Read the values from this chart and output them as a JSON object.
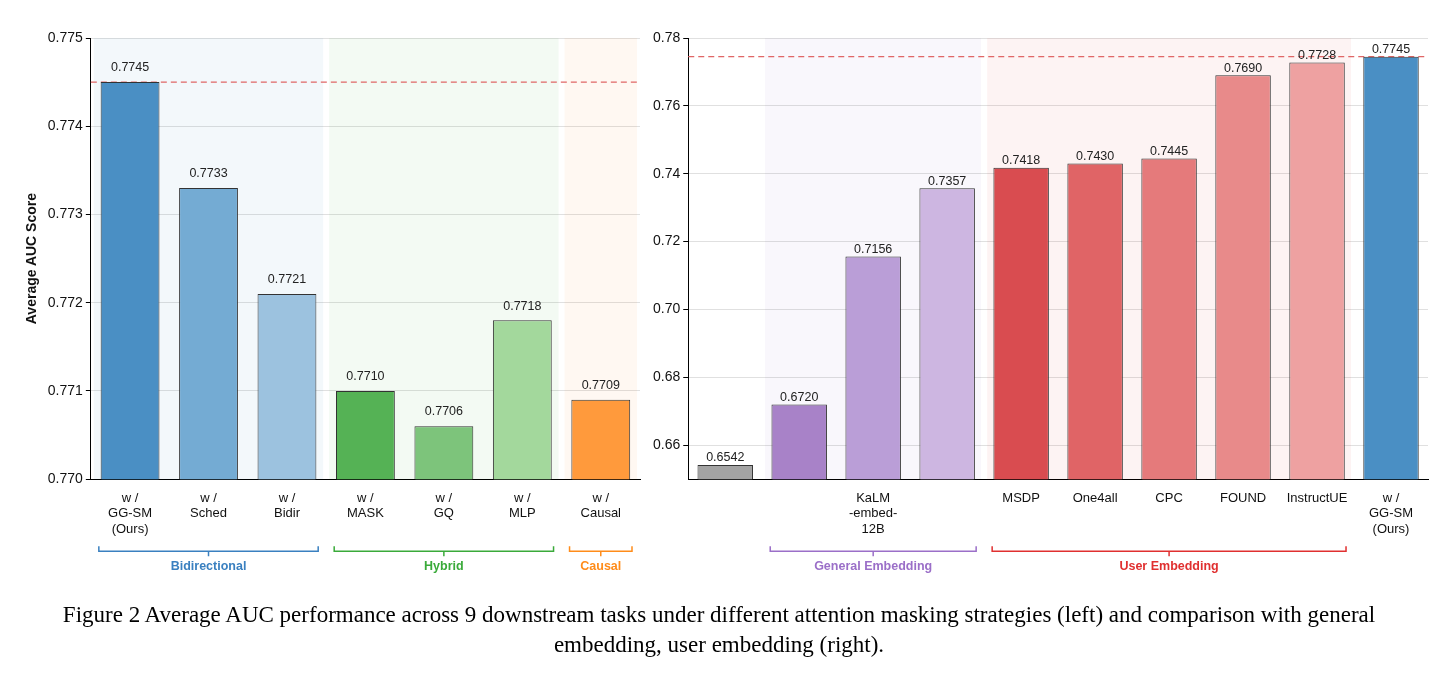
{
  "chart_data": [
    {
      "type": "bar",
      "ylabel": "Average AUC Score",
      "categories": [
        "w /\nGG-SM\n(Ours)",
        "w /\nSched",
        "w /\nBidir",
        "w /\nMASK",
        "w /\nGQ",
        "w /\nMLP",
        "w /\nCausal"
      ],
      "values": [
        0.7745,
        0.7733,
        0.7721,
        0.771,
        0.7706,
        0.7718,
        0.7709
      ],
      "value_labels": [
        "0.7745",
        "0.7733",
        "0.7721",
        "0.7710",
        "0.7706",
        "0.7718",
        "0.7709"
      ],
      "colors": [
        "#4a8fc4",
        "#74abd3",
        "#9cc2df",
        "#55b255",
        "#7dc47b",
        "#a3d89c",
        "#ff9a3c"
      ],
      "ylim": [
        0.77,
        0.775
      ],
      "yticks": [
        {
          "value": 0.77,
          "label": "0.770"
        },
        0.771,
        0.772,
        0.773,
        0.774,
        0.775
      ],
      "grid": "y",
      "legend": "bottom",
      "ref_lines": [
        {
          "axis": "y",
          "value": 0.7745,
          "color": "#e06666",
          "line_style": "dashed"
        }
      ],
      "bands": [
        {
          "axis": "x",
          "from": "w /\nGG-SM\n(Ours)",
          "to": "w /\nBidir",
          "label": "Bidirectional",
          "color": "#3a80c0"
        },
        {
          "axis": "x",
          "from": "w /\nMASK",
          "to": "w /\nMLP",
          "label": "Hybrid",
          "color": "#3aaa3a"
        },
        {
          "axis": "x",
          "from": "w /\nCausal",
          "to": "w /\nCausal",
          "label": "Causal",
          "color": "#ff8c1a"
        }
      ],
      "annotations": [
        "Figure 2  Average AUC performance across 9 downstream tasks under different attention masking strategies (left) and comparison with general embedding, user embedding (right)."
      ]
    },
    {
      "type": "bar",
      "categories": [
        null,
        null,
        "KaLM\n-embed-\n12B",
        null,
        "MSDP",
        "One4all",
        "CPC",
        "FOUND",
        "InstructUE",
        "w /\nGG-SM\n(Ours)"
      ],
      "values": [
        0.6542,
        0.672,
        0.7156,
        0.7357,
        0.7418,
        0.743,
        0.7445,
        0.769,
        0.7728,
        0.7745
      ],
      "value_labels": [
        "0.6542",
        "0.6720",
        "0.7156",
        "0.7357",
        "0.7418",
        "0.7430",
        "0.7445",
        "0.7690",
        "0.7728",
        "0.7745"
      ],
      "colors": [
        "#a3a3a3",
        "#a882c8",
        "#ba9ed7",
        "#cdb6e1",
        "#d94c50",
        "#e06466",
        "#e57a7b",
        "#e88a8a",
        "#eea1a1",
        "#4a8fc4"
      ],
      "ylim": [
        0.65,
        0.78
      ],
      "yticks": [
        0.66,
        0.68,
        {
          "value": 0.7,
          "label": "0.70"
        },
        0.72,
        0.74,
        0.76,
        0.78
      ],
      "grid": "y",
      "ref_lines": [
        {
          "axis": "y",
          "value": 0.7745,
          "color": "#e06666",
          "line_style": "dashed"
        }
      ],
      "legend": "bottom",
      "annotations": [
        "General Embedding"
      ],
      "bands": [
        {
          "axis": "x",
          "from": "MSDP",
          "to": "InstructUE",
          "label": "User Embedding",
          "color": "#e03030"
        }
      ]
    }
  ]
}
